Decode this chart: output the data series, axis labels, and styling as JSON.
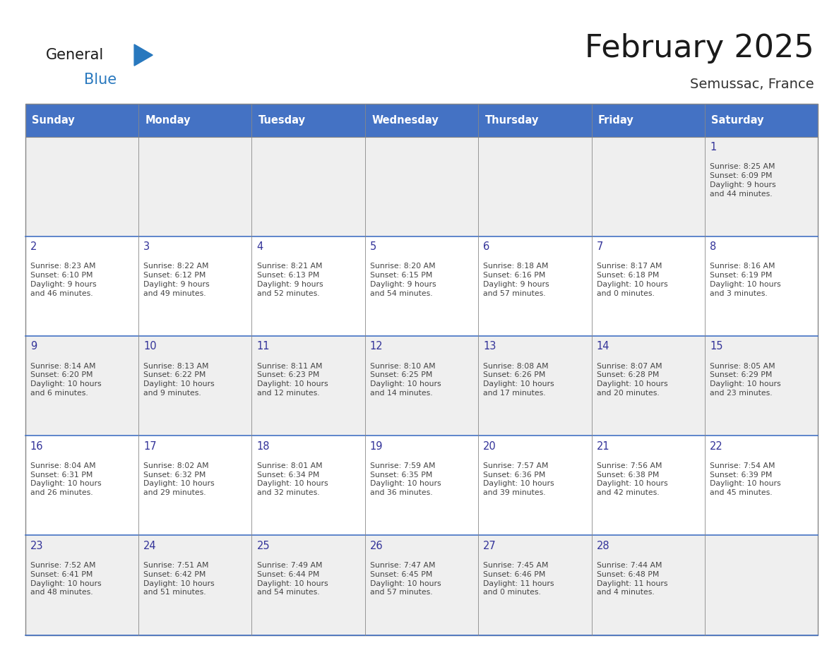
{
  "title": "February 2025",
  "subtitle": "Semussac, France",
  "days_of_week": [
    "Sunday",
    "Monday",
    "Tuesday",
    "Wednesday",
    "Thursday",
    "Friday",
    "Saturday"
  ],
  "header_bg": "#4472C4",
  "header_text": "#FFFFFF",
  "cell_bg_light": "#EFEFEF",
  "cell_bg_white": "#FFFFFF",
  "cell_border": "#AAAAAA",
  "day_number_color": "#333399",
  "text_color": "#444444",
  "title_color": "#1a1a1a",
  "subtitle_color": "#333333",
  "calendar_data": [
    [
      null,
      null,
      null,
      null,
      null,
      null,
      {
        "day": 1,
        "sunrise": "8:25 AM",
        "sunset": "6:09 PM",
        "daylight": "9 hours\nand 44 minutes."
      }
    ],
    [
      {
        "day": 2,
        "sunrise": "8:23 AM",
        "sunset": "6:10 PM",
        "daylight": "9 hours\nand 46 minutes."
      },
      {
        "day": 3,
        "sunrise": "8:22 AM",
        "sunset": "6:12 PM",
        "daylight": "9 hours\nand 49 minutes."
      },
      {
        "day": 4,
        "sunrise": "8:21 AM",
        "sunset": "6:13 PM",
        "daylight": "9 hours\nand 52 minutes."
      },
      {
        "day": 5,
        "sunrise": "8:20 AM",
        "sunset": "6:15 PM",
        "daylight": "9 hours\nand 54 minutes."
      },
      {
        "day": 6,
        "sunrise": "8:18 AM",
        "sunset": "6:16 PM",
        "daylight": "9 hours\nand 57 minutes."
      },
      {
        "day": 7,
        "sunrise": "8:17 AM",
        "sunset": "6:18 PM",
        "daylight": "10 hours\nand 0 minutes."
      },
      {
        "day": 8,
        "sunrise": "8:16 AM",
        "sunset": "6:19 PM",
        "daylight": "10 hours\nand 3 minutes."
      }
    ],
    [
      {
        "day": 9,
        "sunrise": "8:14 AM",
        "sunset": "6:20 PM",
        "daylight": "10 hours\nand 6 minutes."
      },
      {
        "day": 10,
        "sunrise": "8:13 AM",
        "sunset": "6:22 PM",
        "daylight": "10 hours\nand 9 minutes."
      },
      {
        "day": 11,
        "sunrise": "8:11 AM",
        "sunset": "6:23 PM",
        "daylight": "10 hours\nand 12 minutes."
      },
      {
        "day": 12,
        "sunrise": "8:10 AM",
        "sunset": "6:25 PM",
        "daylight": "10 hours\nand 14 minutes."
      },
      {
        "day": 13,
        "sunrise": "8:08 AM",
        "sunset": "6:26 PM",
        "daylight": "10 hours\nand 17 minutes."
      },
      {
        "day": 14,
        "sunrise": "8:07 AM",
        "sunset": "6:28 PM",
        "daylight": "10 hours\nand 20 minutes."
      },
      {
        "day": 15,
        "sunrise": "8:05 AM",
        "sunset": "6:29 PM",
        "daylight": "10 hours\nand 23 minutes."
      }
    ],
    [
      {
        "day": 16,
        "sunrise": "8:04 AM",
        "sunset": "6:31 PM",
        "daylight": "10 hours\nand 26 minutes."
      },
      {
        "day": 17,
        "sunrise": "8:02 AM",
        "sunset": "6:32 PM",
        "daylight": "10 hours\nand 29 minutes."
      },
      {
        "day": 18,
        "sunrise": "8:01 AM",
        "sunset": "6:34 PM",
        "daylight": "10 hours\nand 32 minutes."
      },
      {
        "day": 19,
        "sunrise": "7:59 AM",
        "sunset": "6:35 PM",
        "daylight": "10 hours\nand 36 minutes."
      },
      {
        "day": 20,
        "sunrise": "7:57 AM",
        "sunset": "6:36 PM",
        "daylight": "10 hours\nand 39 minutes."
      },
      {
        "day": 21,
        "sunrise": "7:56 AM",
        "sunset": "6:38 PM",
        "daylight": "10 hours\nand 42 minutes."
      },
      {
        "day": 22,
        "sunrise": "7:54 AM",
        "sunset": "6:39 PM",
        "daylight": "10 hours\nand 45 minutes."
      }
    ],
    [
      {
        "day": 23,
        "sunrise": "7:52 AM",
        "sunset": "6:41 PM",
        "daylight": "10 hours\nand 48 minutes."
      },
      {
        "day": 24,
        "sunrise": "7:51 AM",
        "sunset": "6:42 PM",
        "daylight": "10 hours\nand 51 minutes."
      },
      {
        "day": 25,
        "sunrise": "7:49 AM",
        "sunset": "6:44 PM",
        "daylight": "10 hours\nand 54 minutes."
      },
      {
        "day": 26,
        "sunrise": "7:47 AM",
        "sunset": "6:45 PM",
        "daylight": "10 hours\nand 57 minutes."
      },
      {
        "day": 27,
        "sunrise": "7:45 AM",
        "sunset": "6:46 PM",
        "daylight": "11 hours\nand 0 minutes."
      },
      {
        "day": 28,
        "sunrise": "7:44 AM",
        "sunset": "6:48 PM",
        "daylight": "11 hours\nand 4 minutes."
      },
      null
    ]
  ],
  "logo_text1": "General",
  "logo_text2": "Blue",
  "logo_color1": "#1a1a1a",
  "logo_color2": "#2878BE",
  "logo_triangle_color": "#2878BE"
}
